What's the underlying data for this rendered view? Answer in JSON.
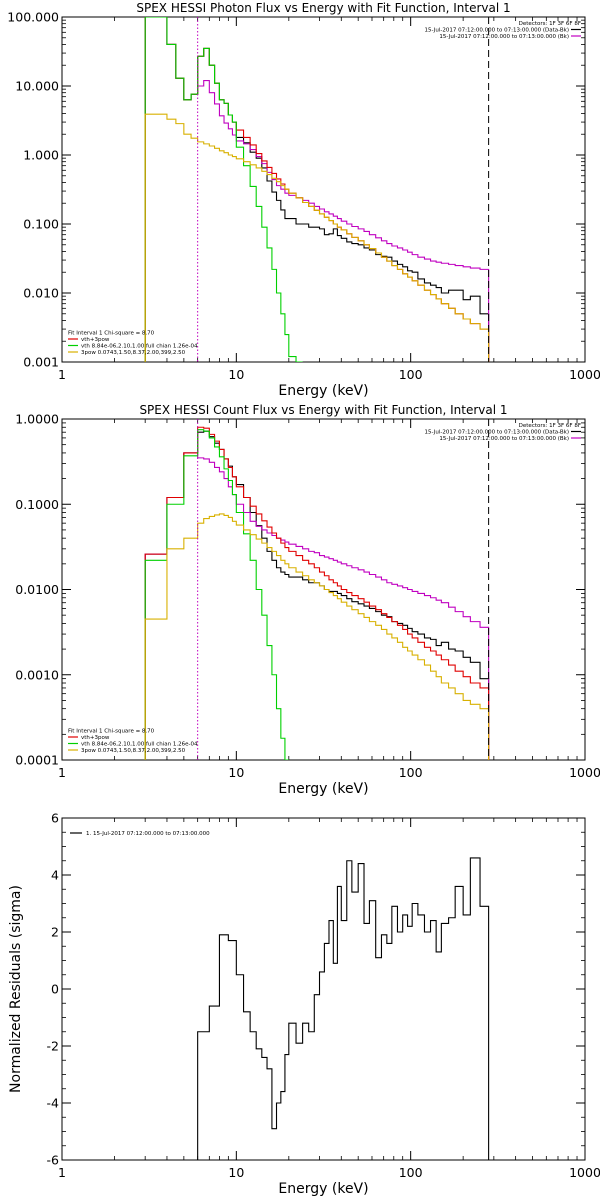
{
  "chart_data": [
    {
      "type": "line",
      "title": "SPEX HESSI Photon Flux vs Energy with Fit Function, Interval 1",
      "xlabel": "Energy (keV)",
      "ylabel": "",
      "xscale": "log",
      "yscale": "log",
      "xlim": [
        1,
        1000
      ],
      "ylim": [
        0.001,
        100
      ],
      "xticks": [
        1,
        10,
        100,
        1000
      ],
      "xtick_labels": [
        "1",
        "10",
        "100",
        "1000"
      ],
      "yticks": [
        0.001,
        0.01,
        0.1,
        1,
        10,
        100
      ],
      "ytick_labels": [
        "0.001",
        "0.010",
        "0.100",
        "1.000",
        "10.000",
        "100.000"
      ],
      "vlines": [
        {
          "x": 6,
          "style": "dotted",
          "color": "#c000c0"
        },
        {
          "x": 280,
          "style": "dashed",
          "color": "#000000"
        }
      ],
      "legend_top_right": [
        {
          "text": "Detectors: 1F 3F 6F 8F",
          "color": "#000000"
        },
        {
          "text": "15-Jul-2017 07:12:00.000 to 07:13:00.000 (Data-Bk)",
          "color": "#000000",
          "swatch": "#000000"
        },
        {
          "text": "15-Jul-2017 07:12:00.000 to 07:13:00.000 (Bk)",
          "color": "#000000",
          "swatch": "#c000c0"
        }
      ],
      "legend_bottom_left": [
        {
          "text": "Fit Interval 1     Chi-square = 8.70",
          "color": "#000000"
        },
        {
          "text": "vth+3pow",
          "color": "#000000",
          "swatch": "#e00000"
        },
        {
          "text": "vth 8.84e-06,2.10,1.00  full chian 1.26e-04",
          "color": "#000000",
          "swatch": "#00d000"
        },
        {
          "text": "3pow 0.0743,1.50,8.37,2.00,399,2.50",
          "color": "#000000",
          "swatch": "#d8b000"
        }
      ],
      "edges": [
        3,
        3.5,
        4,
        4.5,
        5,
        5.5,
        6,
        6.5,
        7,
        7.5,
        8,
        8.5,
        9,
        9.5,
        10,
        11,
        12,
        13,
        14,
        15,
        16,
        17,
        18,
        19,
        20,
        22,
        24,
        26,
        28,
        30,
        32,
        34,
        36,
        38,
        40,
        43,
        46,
        50,
        54,
        58,
        63,
        68,
        73,
        78,
        84,
        90,
        96,
        102,
        110,
        120,
        130,
        140,
        150,
        165,
        180,
        200,
        220,
        250,
        280
      ],
      "series": [
        {
          "color": "#000000",
          "start": 0,
          "values": [
            100,
            100,
            40,
            13,
            6.3,
            7.6,
            27,
            35,
            20,
            11,
            6.3,
            5.6,
            3.8,
            3.0,
            1.8,
            1.5,
            1.1,
            0.9,
            0.65,
            0.42,
            0.29,
            0.22,
            0.16,
            0.12,
            0.12,
            0.1,
            0.1,
            0.09,
            0.09,
            0.085,
            0.07,
            0.072,
            0.085,
            0.068,
            0.062,
            0.055,
            0.052,
            0.05,
            0.045,
            0.042,
            0.036,
            0.034,
            0.033,
            0.029,
            0.026,
            0.024,
            0.021,
            0.02,
            0.016,
            0.014,
            0.013,
            0.012,
            0.01,
            0.011,
            0.011,
            0.008,
            0.009,
            0.005
          ]
        },
        {
          "color": "#c000c0",
          "start": 0,
          "values": [
            100,
            100,
            40,
            13,
            6.3,
            7.6,
            10,
            12,
            8,
            5.5,
            3.7,
            2.9,
            2.4,
            1.95,
            1.6,
            1.45,
            1.2,
            0.95,
            0.75,
            0.56,
            0.44,
            0.36,
            0.32,
            0.28,
            0.26,
            0.24,
            0.22,
            0.2,
            0.18,
            0.165,
            0.15,
            0.14,
            0.13,
            0.12,
            0.11,
            0.1,
            0.092,
            0.085,
            0.078,
            0.07,
            0.063,
            0.057,
            0.052,
            0.048,
            0.045,
            0.042,
            0.039,
            0.036,
            0.033,
            0.031,
            0.029,
            0.028,
            0.027,
            0.026,
            0.025,
            0.024,
            0.023,
            0.022
          ]
        },
        {
          "color": "#e00000",
          "start": 0,
          "values": [
            100,
            100,
            40,
            13,
            6.3,
            7.6,
            27,
            35,
            20,
            11,
            6.3,
            5.6,
            3.8,
            3.0,
            2.3,
            1.8,
            1.4,
            1.05,
            0.82,
            0.66,
            0.54,
            0.45,
            0.38,
            0.32,
            0.28,
            0.24,
            0.205,
            0.18,
            0.158,
            0.14,
            0.125,
            0.112,
            0.1,
            0.09,
            0.082,
            0.072,
            0.064,
            0.057,
            0.05,
            0.044,
            0.038,
            0.033,
            0.029,
            0.025,
            0.022,
            0.019,
            0.017,
            0.015,
            0.013,
            0.011,
            0.0095,
            0.0082,
            0.007,
            0.006,
            0.005,
            0.0042,
            0.0036,
            0.003
          ]
        },
        {
          "color": "#00d000",
          "start": 0,
          "values": [
            100,
            100,
            40,
            13,
            6.3,
            7.6,
            27,
            35,
            20,
            11,
            6.3,
            5.6,
            3.8,
            3.0,
            1.3,
            0.7,
            0.35,
            0.18,
            0.09,
            0.045,
            0.022,
            0.01,
            0.005,
            0.0025,
            0.0012,
            0.0005
          ]
        },
        {
          "color": "#d8b000",
          "start": 0,
          "values": [
            3.9,
            3.9,
            3.3,
            2.85,
            2.0,
            1.75,
            1.55,
            1.45,
            1.35,
            1.25,
            1.15,
            1.08,
            1.0,
            0.95,
            0.88,
            0.8,
            0.72,
            0.65,
            0.58,
            0.52,
            0.46,
            0.41,
            0.36,
            0.32,
            0.28,
            0.24,
            0.205,
            0.18,
            0.158,
            0.14,
            0.125,
            0.112,
            0.1,
            0.09,
            0.082,
            0.072,
            0.064,
            0.057,
            0.05,
            0.044,
            0.038,
            0.033,
            0.029,
            0.025,
            0.022,
            0.019,
            0.017,
            0.015,
            0.013,
            0.011,
            0.0095,
            0.0082,
            0.007,
            0.006,
            0.005,
            0.0042,
            0.0036,
            0.003
          ]
        }
      ]
    },
    {
      "type": "line",
      "title": "SPEX HESSI Count Flux vs Energy with Fit Function, Interval 1",
      "xlabel": "Energy (keV)",
      "ylabel": "",
      "xscale": "log",
      "yscale": "log",
      "xlim": [
        1,
        1000
      ],
      "ylim": [
        0.0001,
        1
      ],
      "xticks": [
        1,
        10,
        100,
        1000
      ],
      "xtick_labels": [
        "1",
        "10",
        "100",
        "1000"
      ],
      "yticks": [
        0.0001,
        0.001,
        0.01,
        0.1,
        1
      ],
      "ytick_labels": [
        "0.0001",
        "0.0010",
        "0.0100",
        "0.1000",
        "1.0000"
      ],
      "vlines": [
        {
          "x": 6,
          "style": "dotted",
          "color": "#c000c0"
        },
        {
          "x": 280,
          "style": "dashed",
          "color": "#000000"
        }
      ],
      "legend_top_right": [
        {
          "text": "Detectors: 1F 3F 6F 8F",
          "color": "#000000"
        },
        {
          "text": "15-Jul-2017 07:12:00.000 to 07:13:00.000 (Data-Bk)",
          "color": "#000000",
          "swatch": "#000000"
        },
        {
          "text": "15-Jul-2017 07:12:00.000 to 07:13:00.000 (Bk)",
          "color": "#000000",
          "swatch": "#c000c0"
        }
      ],
      "legend_bottom_left": [
        {
          "text": "Fit Interval 1     Chi-square = 8.70",
          "color": "#000000"
        },
        {
          "text": "vth+3pow",
          "color": "#000000",
          "swatch": "#e00000"
        },
        {
          "text": "vth 8.84e-06,2.10,1.00  full chian 1.26e-04",
          "color": "#000000",
          "swatch": "#00d000"
        },
        {
          "text": "3pow 0.0743,1.50,8.37,2.00,399,2.50",
          "color": "#000000",
          "swatch": "#d8b000"
        }
      ],
      "edges": [
        3,
        4,
        5,
        6,
        6.5,
        7,
        7.5,
        8,
        8.5,
        9,
        9.5,
        10,
        11,
        12,
        13,
        14,
        15,
        16,
        17,
        18,
        19,
        20,
        22,
        24,
        26,
        28,
        30,
        32,
        34,
        36,
        38,
        40,
        43,
        46,
        50,
        54,
        58,
        63,
        68,
        73,
        78,
        84,
        90,
        96,
        102,
        110,
        120,
        130,
        140,
        150,
        165,
        180,
        200,
        220,
        250,
        280
      ],
      "series": [
        {
          "color": "#000000",
          "start": 0,
          "values": [
            0.026,
            0.12,
            0.4,
            0.7,
            0.72,
            0.62,
            0.52,
            0.44,
            0.34,
            0.28,
            0.21,
            0.17,
            0.12,
            0.08,
            0.056,
            0.04,
            0.028,
            0.022,
            0.018,
            0.016,
            0.015,
            0.014,
            0.014,
            0.013,
            0.012,
            0.012,
            0.011,
            0.01,
            0.0095,
            0.0095,
            0.009,
            0.0085,
            0.0078,
            0.0072,
            0.0068,
            0.0064,
            0.006,
            0.0055,
            0.005,
            0.0048,
            0.0042,
            0.004,
            0.0038,
            0.0035,
            0.0032,
            0.003,
            0.0027,
            0.0026,
            0.0022,
            0.0024,
            0.002,
            0.0019,
            0.0016,
            0.0014,
            0.0009
          ]
        },
        {
          "color": "#c000c0",
          "start": 0,
          "values": [
            0.026,
            0.12,
            0.4,
            0.35,
            0.34,
            0.31,
            0.27,
            0.24,
            0.2,
            0.16,
            0.13,
            0.1,
            0.08,
            0.063,
            0.055,
            0.05,
            0.046,
            0.043,
            0.04,
            0.038,
            0.036,
            0.034,
            0.032,
            0.03,
            0.028,
            0.027,
            0.025,
            0.024,
            0.023,
            0.022,
            0.021,
            0.02,
            0.019,
            0.018,
            0.017,
            0.016,
            0.015,
            0.014,
            0.013,
            0.012,
            0.0115,
            0.011,
            0.0105,
            0.01,
            0.0095,
            0.009,
            0.0085,
            0.008,
            0.0075,
            0.007,
            0.0062,
            0.0055,
            0.0048,
            0.0042,
            0.0036
          ]
        },
        {
          "color": "#e00000",
          "start": 0,
          "values": [
            0.026,
            0.12,
            0.4,
            0.8,
            0.78,
            0.66,
            0.55,
            0.44,
            0.34,
            0.27,
            0.21,
            0.16,
            0.12,
            0.095,
            0.077,
            0.064,
            0.054,
            0.046,
            0.04,
            0.035,
            0.031,
            0.028,
            0.025,
            0.022,
            0.02,
            0.018,
            0.016,
            0.0145,
            0.013,
            0.012,
            0.011,
            0.01,
            0.0092,
            0.0085,
            0.0078,
            0.0071,
            0.0064,
            0.0058,
            0.0052,
            0.0047,
            0.0042,
            0.0038,
            0.0034,
            0.003,
            0.0027,
            0.0024,
            0.0021,
            0.0019,
            0.0017,
            0.0015,
            0.0013,
            0.0011,
            0.00095,
            0.0008,
            0.0007
          ]
        },
        {
          "color": "#00d000",
          "start": 0,
          "values": [
            0.022,
            0.1,
            0.37,
            0.75,
            0.72,
            0.6,
            0.47,
            0.36,
            0.26,
            0.19,
            0.13,
            0.08,
            0.045,
            0.022,
            0.01,
            0.005,
            0.0022,
            0.001,
            0.0004,
            0.00018,
            8e-05
          ]
        },
        {
          "color": "#d8b000",
          "start": 0,
          "values": [
            0.0045,
            0.03,
            0.04,
            0.06,
            0.068,
            0.072,
            0.075,
            0.077,
            0.074,
            0.07,
            0.063,
            0.057,
            0.05,
            0.044,
            0.039,
            0.035,
            0.031,
            0.028,
            0.025,
            0.022,
            0.02,
            0.018,
            0.016,
            0.0145,
            0.013,
            0.012,
            0.011,
            0.01,
            0.0092,
            0.0085,
            0.0078,
            0.0071,
            0.0064,
            0.0058,
            0.0052,
            0.0047,
            0.0042,
            0.0038,
            0.0034,
            0.003,
            0.0027,
            0.0024,
            0.0021,
            0.0019,
            0.0017,
            0.0015,
            0.0013,
            0.0011,
            0.00095,
            0.0008,
            0.0007,
            0.0006,
            0.0005,
            0.00045,
            0.0004
          ]
        }
      ]
    },
    {
      "type": "line",
      "title": "",
      "xlabel": "Energy (keV)",
      "ylabel": "Normalized Residuals (sigma)",
      "xscale": "log",
      "yscale": "linear",
      "xlim": [
        1,
        1000
      ],
      "ylim": [
        -6,
        6
      ],
      "xticks": [
        1,
        10,
        100,
        1000
      ],
      "xtick_labels": [
        "1",
        "10",
        "100",
        "1000"
      ],
      "yticks": [
        -6,
        -4,
        -2,
        0,
        2,
        4,
        6
      ],
      "ytick_labels": [
        "-6",
        "-4",
        "-2",
        "0",
        "2",
        "4",
        "6"
      ],
      "vlines": [],
      "legend_top_left": [
        {
          "text": "1. 15-Jul-2017 07:12:00.000 to 07:13:00.000",
          "color": "#000000",
          "swatch": "#000000"
        }
      ],
      "edges": [
        6,
        7,
        8,
        9,
        10,
        11,
        12,
        13,
        14,
        15,
        16,
        17,
        18,
        19,
        20,
        22,
        24,
        26,
        28,
        30,
        32,
        34,
        36,
        38,
        40,
        43,
        46,
        50,
        54,
        58,
        63,
        68,
        73,
        78,
        84,
        90,
        96,
        102,
        110,
        120,
        130,
        140,
        150,
        165,
        180,
        200,
        220,
        250,
        280
      ],
      "series": [
        {
          "color": "#000000",
          "baseline": -6,
          "values": [
            -1.5,
            -0.6,
            1.9,
            1.7,
            0.5,
            -0.8,
            -1.5,
            -2.1,
            -2.4,
            -2.8,
            -4.9,
            -4.0,
            -3.6,
            -2.3,
            -1.2,
            -1.9,
            -1.2,
            -1.5,
            -0.2,
            0.6,
            1.6,
            2.4,
            0.9,
            3.6,
            2.4,
            4.5,
            3.4,
            4.4,
            2.3,
            3.1,
            1.1,
            1.9,
            1.6,
            2.9,
            2.0,
            2.6,
            2.2,
            3.0,
            2.6,
            2.0,
            2.4,
            1.3,
            2.3,
            2.5,
            3.6,
            2.6,
            4.6,
            2.9
          ]
        }
      ]
    }
  ]
}
